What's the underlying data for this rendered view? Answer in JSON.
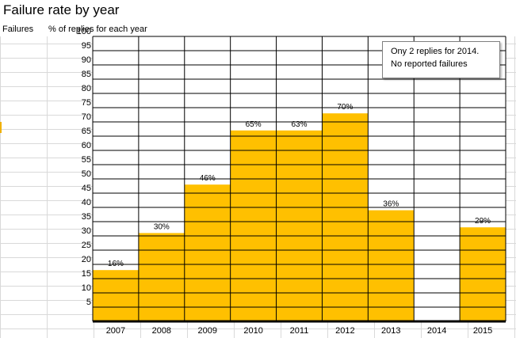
{
  "title": "Failure rate by year",
  "headers": {
    "failures": "Failures",
    "percent": "% of replies for each year"
  },
  "note": {
    "line1": "Ony 2 replies for 2014.",
    "line2": "No reported failures"
  },
  "colors": {
    "bar": "#ffc000",
    "grid": "#000000",
    "sheet_grid": "#d9d9d9"
  },
  "chart_data": {
    "type": "bar",
    "title": "Failure rate by year",
    "categories": [
      "2007",
      "2008",
      "2009",
      "2010",
      "2011",
      "2012",
      "2013",
      "2014",
      "2015"
    ],
    "values": [
      18,
      31,
      48,
      67,
      67,
      73,
      39,
      0,
      33
    ],
    "data_labels": [
      "16%",
      "30%",
      "46%",
      "65%",
      "63%",
      "70%",
      "36%",
      "",
      "29%"
    ],
    "ylim": [
      0,
      100
    ],
    "yticks": [
      5,
      10,
      15,
      20,
      25,
      30,
      35,
      40,
      45,
      50,
      55,
      60,
      65,
      70,
      75,
      80,
      85,
      90,
      95,
      100
    ],
    "ylabel": "% of replies for each year",
    "grid": true
  }
}
